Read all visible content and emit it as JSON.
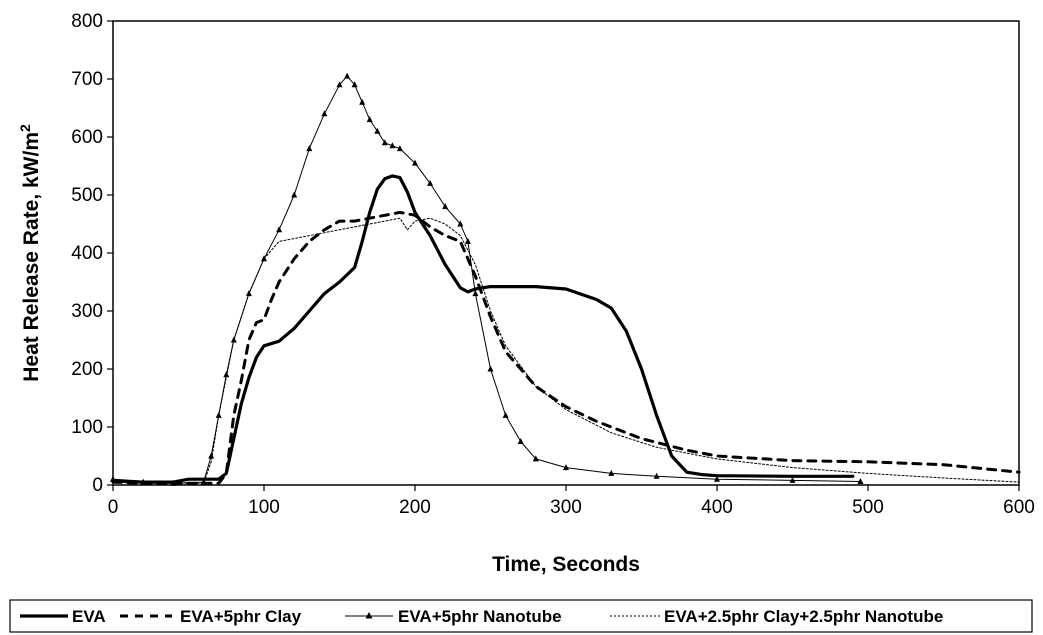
{
  "chart_data": {
    "type": "line",
    "xlabel": "Time, Seconds",
    "ylabel_main": "Heat Release Rate, kW/m",
    "ylabel_sup": "2",
    "xlim": [
      0,
      600
    ],
    "ylim": [
      0,
      800
    ],
    "xticks": [
      "0",
      "100",
      "200",
      "300",
      "400",
      "500",
      "600"
    ],
    "yticks": [
      "0",
      "100",
      "200",
      "300",
      "400",
      "500",
      "600",
      "700",
      "800"
    ],
    "grid": false,
    "legend_position": "bottom",
    "series": [
      {
        "name": "EVA",
        "style": "solid-thick",
        "x": [
          0,
          20,
          40,
          50,
          60,
          70,
          75,
          80,
          85,
          90,
          95,
          100,
          110,
          120,
          130,
          140,
          150,
          160,
          165,
          170,
          175,
          180,
          185,
          190,
          195,
          200,
          210,
          220,
          230,
          235,
          240,
          250,
          260,
          280,
          300,
          320,
          330,
          340,
          350,
          360,
          370,
          380,
          390,
          400,
          450,
          490
        ],
        "y": [
          8,
          5,
          5,
          10,
          10,
          10,
          20,
          80,
          140,
          185,
          220,
          240,
          248,
          270,
          300,
          330,
          350,
          375,
          420,
          470,
          510,
          528,
          533,
          530,
          505,
          470,
          430,
          380,
          340,
          333,
          338,
          342,
          342,
          342,
          338,
          320,
          305,
          265,
          200,
          120,
          50,
          22,
          18,
          16,
          15,
          15
        ]
      },
      {
        "name": "EVA+5phr Clay",
        "style": "dashed-thick",
        "x": [
          0,
          20,
          40,
          60,
          70,
          75,
          80,
          85,
          90,
          95,
          100,
          105,
          110,
          120,
          130,
          140,
          150,
          160,
          170,
          180,
          190,
          200,
          210,
          220,
          230,
          240,
          250,
          260,
          280,
          300,
          320,
          350,
          380,
          400,
          450,
          500,
          550,
          600
        ],
        "y": [
          5,
          3,
          3,
          3,
          3,
          20,
          120,
          180,
          250,
          280,
          285,
          320,
          350,
          390,
          420,
          440,
          455,
          455,
          460,
          465,
          470,
          465,
          445,
          430,
          420,
          360,
          290,
          230,
          170,
          135,
          110,
          80,
          60,
          50,
          42,
          40,
          35,
          22
        ]
      },
      {
        "name": "EVA+5phr Nanotube",
        "style": "solid-triangle",
        "x": [
          0,
          20,
          40,
          60,
          65,
          70,
          75,
          80,
          90,
          100,
          110,
          120,
          130,
          140,
          150,
          155,
          160,
          165,
          170,
          175,
          180,
          185,
          190,
          200,
          210,
          220,
          230,
          235,
          240,
          250,
          260,
          270,
          280,
          300,
          330,
          360,
          400,
          450,
          495
        ],
        "y": [
          10,
          5,
          3,
          5,
          50,
          120,
          190,
          250,
          330,
          390,
          440,
          500,
          580,
          640,
          690,
          705,
          690,
          660,
          630,
          610,
          590,
          585,
          580,
          555,
          520,
          480,
          450,
          420,
          330,
          200,
          120,
          75,
          45,
          30,
          20,
          15,
          10,
          8,
          6
        ]
      },
      {
        "name": "EVA+2.5phr Clay+2.5phr Nanotube",
        "style": "dotted-thin",
        "x": [
          0,
          20,
          40,
          60,
          65,
          70,
          80,
          90,
          100,
          110,
          120,
          140,
          160,
          180,
          190,
          195,
          200,
          210,
          220,
          230,
          240,
          250,
          260,
          280,
          300,
          330,
          360,
          400,
          450,
          500,
          550,
          600
        ],
        "y": [
          5,
          3,
          3,
          3,
          40,
          120,
          250,
          330,
          390,
          420,
          425,
          435,
          445,
          455,
          460,
          440,
          455,
          460,
          450,
          430,
          380,
          300,
          240,
          170,
          130,
          90,
          65,
          45,
          30,
          20,
          12,
          5
        ]
      }
    ]
  }
}
